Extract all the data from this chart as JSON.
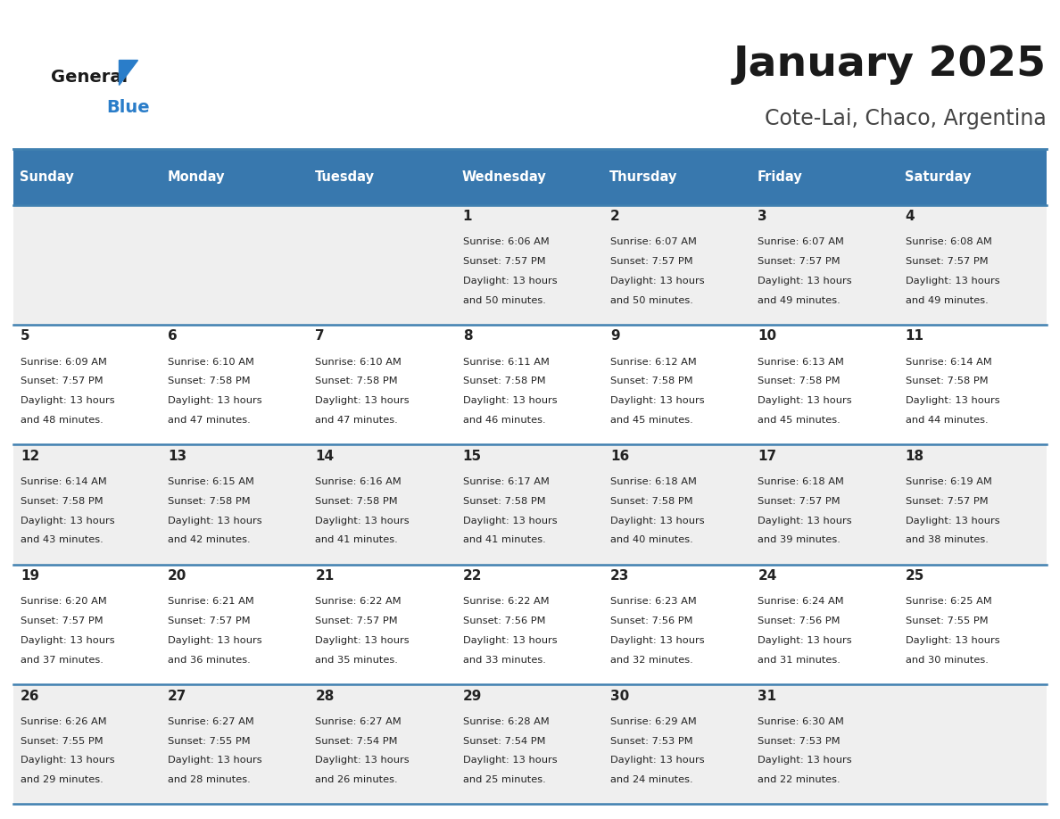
{
  "title": "January 2025",
  "subtitle": "Cote-Lai, Chaco, Argentina",
  "days_of_week": [
    "Sunday",
    "Monday",
    "Tuesday",
    "Wednesday",
    "Thursday",
    "Friday",
    "Saturday"
  ],
  "header_bg_color": "#3878ae",
  "header_text_color": "#ffffff",
  "cell_bg_row0": "#efefef",
  "cell_bg_row1": "#ffffff",
  "cell_text_color": "#222222",
  "border_color": "#4080b0",
  "title_color": "#1a1a1a",
  "subtitle_color": "#444444",
  "logo_general_color": "#1a1a1a",
  "logo_blue_color": "#2a7dc9",
  "logo_triangle_color": "#2a7dc9",
  "calendar_data": [
    [
      null,
      null,
      null,
      {
        "day": 1,
        "sunrise": "6:06 AM",
        "sunset": "7:57 PM",
        "daylight": "13 hours and 50 minutes."
      },
      {
        "day": 2,
        "sunrise": "6:07 AM",
        "sunset": "7:57 PM",
        "daylight": "13 hours and 50 minutes."
      },
      {
        "day": 3,
        "sunrise": "6:07 AM",
        "sunset": "7:57 PM",
        "daylight": "13 hours and 49 minutes."
      },
      {
        "day": 4,
        "sunrise": "6:08 AM",
        "sunset": "7:57 PM",
        "daylight": "13 hours and 49 minutes."
      }
    ],
    [
      {
        "day": 5,
        "sunrise": "6:09 AM",
        "sunset": "7:57 PM",
        "daylight": "13 hours and 48 minutes."
      },
      {
        "day": 6,
        "sunrise": "6:10 AM",
        "sunset": "7:58 PM",
        "daylight": "13 hours and 47 minutes."
      },
      {
        "day": 7,
        "sunrise": "6:10 AM",
        "sunset": "7:58 PM",
        "daylight": "13 hours and 47 minutes."
      },
      {
        "day": 8,
        "sunrise": "6:11 AM",
        "sunset": "7:58 PM",
        "daylight": "13 hours and 46 minutes."
      },
      {
        "day": 9,
        "sunrise": "6:12 AM",
        "sunset": "7:58 PM",
        "daylight": "13 hours and 45 minutes."
      },
      {
        "day": 10,
        "sunrise": "6:13 AM",
        "sunset": "7:58 PM",
        "daylight": "13 hours and 45 minutes."
      },
      {
        "day": 11,
        "sunrise": "6:14 AM",
        "sunset": "7:58 PM",
        "daylight": "13 hours and 44 minutes."
      }
    ],
    [
      {
        "day": 12,
        "sunrise": "6:14 AM",
        "sunset": "7:58 PM",
        "daylight": "13 hours and 43 minutes."
      },
      {
        "day": 13,
        "sunrise": "6:15 AM",
        "sunset": "7:58 PM",
        "daylight": "13 hours and 42 minutes."
      },
      {
        "day": 14,
        "sunrise": "6:16 AM",
        "sunset": "7:58 PM",
        "daylight": "13 hours and 41 minutes."
      },
      {
        "day": 15,
        "sunrise": "6:17 AM",
        "sunset": "7:58 PM",
        "daylight": "13 hours and 41 minutes."
      },
      {
        "day": 16,
        "sunrise": "6:18 AM",
        "sunset": "7:58 PM",
        "daylight": "13 hours and 40 minutes."
      },
      {
        "day": 17,
        "sunrise": "6:18 AM",
        "sunset": "7:57 PM",
        "daylight": "13 hours and 39 minutes."
      },
      {
        "day": 18,
        "sunrise": "6:19 AM",
        "sunset": "7:57 PM",
        "daylight": "13 hours and 38 minutes."
      }
    ],
    [
      {
        "day": 19,
        "sunrise": "6:20 AM",
        "sunset": "7:57 PM",
        "daylight": "13 hours and 37 minutes."
      },
      {
        "day": 20,
        "sunrise": "6:21 AM",
        "sunset": "7:57 PM",
        "daylight": "13 hours and 36 minutes."
      },
      {
        "day": 21,
        "sunrise": "6:22 AM",
        "sunset": "7:57 PM",
        "daylight": "13 hours and 35 minutes."
      },
      {
        "day": 22,
        "sunrise": "6:22 AM",
        "sunset": "7:56 PM",
        "daylight": "13 hours and 33 minutes."
      },
      {
        "day": 23,
        "sunrise": "6:23 AM",
        "sunset": "7:56 PM",
        "daylight": "13 hours and 32 minutes."
      },
      {
        "day": 24,
        "sunrise": "6:24 AM",
        "sunset": "7:56 PM",
        "daylight": "13 hours and 31 minutes."
      },
      {
        "day": 25,
        "sunrise": "6:25 AM",
        "sunset": "7:55 PM",
        "daylight": "13 hours and 30 minutes."
      }
    ],
    [
      {
        "day": 26,
        "sunrise": "6:26 AM",
        "sunset": "7:55 PM",
        "daylight": "13 hours and 29 minutes."
      },
      {
        "day": 27,
        "sunrise": "6:27 AM",
        "sunset": "7:55 PM",
        "daylight": "13 hours and 28 minutes."
      },
      {
        "day": 28,
        "sunrise": "6:27 AM",
        "sunset": "7:54 PM",
        "daylight": "13 hours and 26 minutes."
      },
      {
        "day": 29,
        "sunrise": "6:28 AM",
        "sunset": "7:54 PM",
        "daylight": "13 hours and 25 minutes."
      },
      {
        "day": 30,
        "sunrise": "6:29 AM",
        "sunset": "7:53 PM",
        "daylight": "13 hours and 24 minutes."
      },
      {
        "day": 31,
        "sunrise": "6:30 AM",
        "sunset": "7:53 PM",
        "daylight": "13 hours and 22 minutes."
      },
      null
    ]
  ]
}
